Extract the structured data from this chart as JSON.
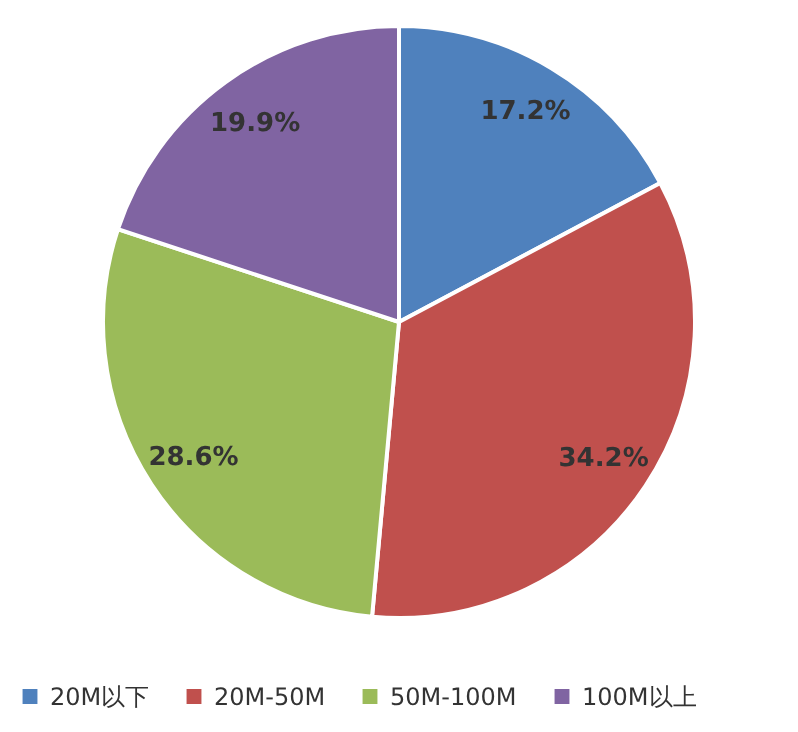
{
  "chart_data": {
    "type": "pie",
    "categories": [
      "20M以下",
      "20M-50M",
      "50M-100M",
      "100M以上"
    ],
    "values": [
      17.2,
      34.2,
      28.6,
      19.9
    ],
    "colors": [
      "#4f81bd",
      "#c0504d",
      "#9bbb59",
      "#8064a2"
    ],
    "value_labels": [
      "17.2%",
      "34.2%",
      "28.6%",
      "19.9%"
    ],
    "legend": "bottom"
  }
}
